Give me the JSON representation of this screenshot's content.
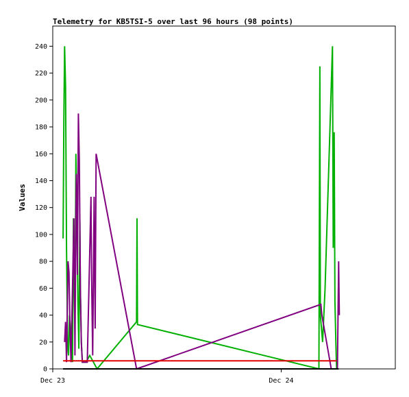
{
  "chart_data": {
    "type": "line",
    "title": "Telemetry for KB5TSI-5 over last 96 hours (98 points)",
    "ylabel": "Values",
    "xlabel": "",
    "ylim": [
      0,
      255
    ],
    "xlim": [
      0,
      13.9
    ],
    "x_unit": "hours since Dec 23 00:00",
    "y_ticks": [
      0,
      20,
      40,
      60,
      80,
      100,
      120,
      140,
      160,
      180,
      200,
      220,
      240
    ],
    "x_ticks": [
      {
        "x": 0,
        "label": "Dec 23"
      },
      {
        "x": 9.27,
        "label": "Dec 24"
      }
    ],
    "grid": false,
    "legend": "none",
    "series": [
      {
        "color": "#00b000",
        "points": [
          [
            0.42,
            97
          ],
          [
            0.45,
            184
          ],
          [
            0.48,
            240
          ],
          [
            0.52,
            210
          ],
          [
            0.56,
            90
          ],
          [
            0.6,
            20
          ],
          [
            0.64,
            10
          ],
          [
            0.68,
            40
          ],
          [
            0.72,
            30
          ],
          [
            0.76,
            20
          ],
          [
            0.8,
            5
          ],
          [
            0.84,
            112
          ],
          [
            0.87,
            60
          ],
          [
            0.9,
            30
          ],
          [
            0.94,
            160
          ],
          [
            0.98,
            112
          ],
          [
            1.02,
            50
          ],
          [
            1.06,
            15
          ],
          [
            1.1,
            110
          ],
          [
            1.12,
            60
          ],
          [
            1.16,
            20
          ],
          [
            1.2,
            5
          ],
          [
            1.35,
            5
          ],
          [
            1.5,
            10
          ],
          [
            1.65,
            5
          ],
          [
            1.8,
            0
          ],
          [
            3.4,
            35
          ],
          [
            3.42,
            112
          ],
          [
            3.44,
            33
          ],
          [
            10.8,
            0
          ],
          [
            10.82,
            112
          ],
          [
            10.84,
            225
          ],
          [
            10.86,
            40
          ],
          [
            10.95,
            20
          ],
          [
            11.05,
            60
          ],
          [
            11.15,
            120
          ],
          [
            11.25,
            180
          ],
          [
            11.3,
            210
          ],
          [
            11.35,
            240
          ],
          [
            11.38,
            90
          ],
          [
            11.42,
            176
          ],
          [
            11.45,
            50
          ],
          [
            11.5,
            10
          ],
          [
            11.52,
            0
          ]
        ]
      },
      {
        "color": "#800080",
        "points": [
          [
            0.48,
            20
          ],
          [
            0.52,
            35
          ],
          [
            0.56,
            5
          ],
          [
            0.62,
            80
          ],
          [
            0.66,
            72
          ],
          [
            0.7,
            30
          ],
          [
            0.74,
            5
          ],
          [
            0.86,
            112
          ],
          [
            0.9,
            10
          ],
          [
            0.94,
            120
          ],
          [
            0.96,
            145
          ],
          [
            0.98,
            112
          ],
          [
            1.0,
            70
          ],
          [
            1.04,
            190
          ],
          [
            1.08,
            155
          ],
          [
            1.12,
            60
          ],
          [
            1.16,
            20
          ],
          [
            1.2,
            5
          ],
          [
            1.4,
            5
          ],
          [
            1.55,
            128
          ],
          [
            1.58,
            65
          ],
          [
            1.62,
            10
          ],
          [
            1.68,
            128
          ],
          [
            1.72,
            30
          ],
          [
            1.76,
            160
          ],
          [
            3.35,
            5
          ],
          [
            3.4,
            0
          ],
          [
            10.88,
            48
          ],
          [
            10.92,
            40
          ],
          [
            11.3,
            0
          ],
          [
            11.55,
            0
          ],
          [
            11.6,
            80
          ],
          [
            11.63,
            40
          ]
        ]
      },
      {
        "color": "#e00000",
        "points": [
          [
            0.42,
            6
          ],
          [
            11.52,
            6
          ]
        ]
      },
      {
        "color": "#000000",
        "points": [
          [
            0.42,
            0
          ],
          [
            11.6,
            0
          ]
        ]
      }
    ]
  }
}
